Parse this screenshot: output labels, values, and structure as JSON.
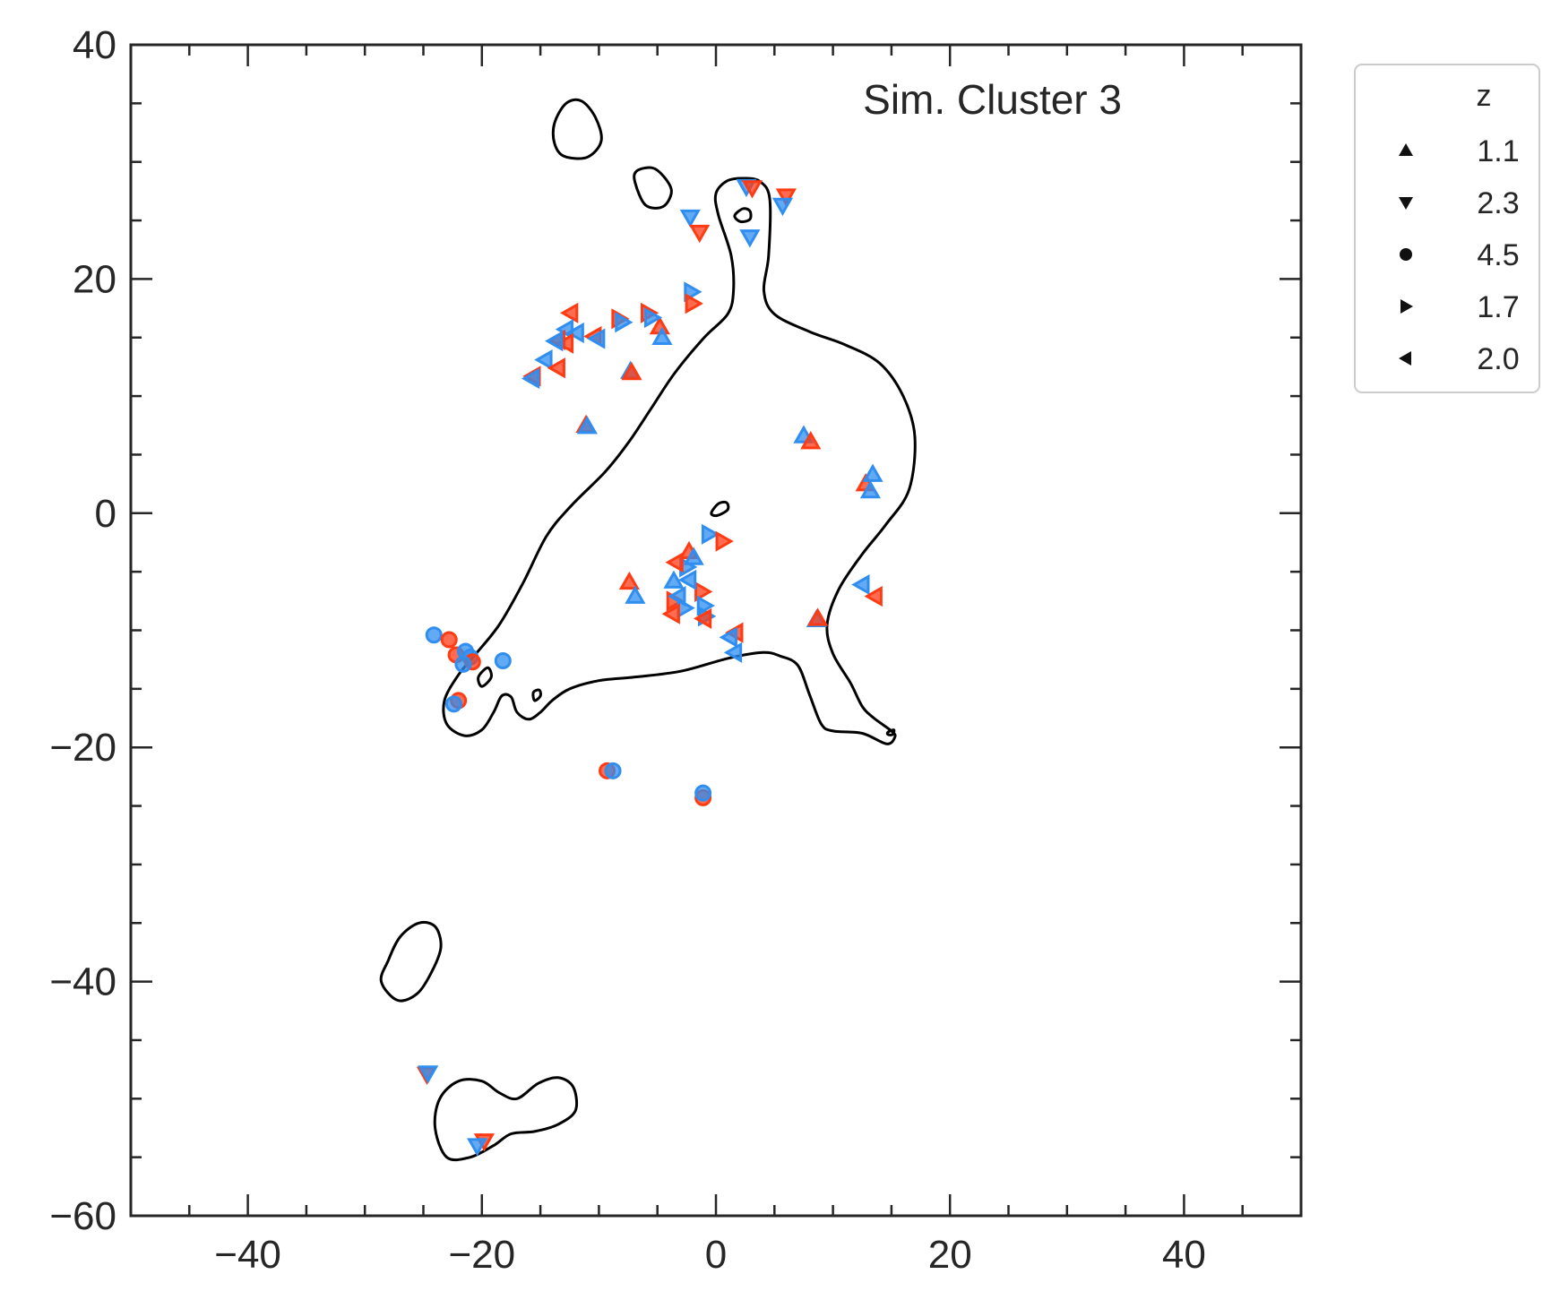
{
  "chart_data": {
    "type": "scatter",
    "title": "",
    "xlabel": "",
    "ylabel": "",
    "xlim": [
      -50,
      50
    ],
    "ylim": [
      -60,
      40
    ],
    "xticks": [
      -40,
      -20,
      0,
      20,
      40
    ],
    "yticks": [
      40,
      20,
      0,
      -20,
      -40,
      -60
    ],
    "annotation": "Sim. Cluster 3",
    "legend": {
      "title": "z",
      "placement": "outside-top-right",
      "entries": [
        {
          "label": "1.1",
          "marker": "triangle-up"
        },
        {
          "label": "2.3",
          "marker": "triangle-down"
        },
        {
          "label": "4.5",
          "marker": "circle"
        },
        {
          "label": "1.7",
          "marker": "triangle-right"
        },
        {
          "label": "2.0",
          "marker": "triangle-left"
        }
      ]
    },
    "colors": {
      "set_a": "#ff3b14",
      "set_b": "#2f8ef0",
      "contour": "#000000",
      "axes": "#262626"
    },
    "points": [
      {
        "x": -7.3,
        "y": 12.1,
        "m": "up",
        "c": "b"
      },
      {
        "x": -7.2,
        "y": 12.0,
        "m": "up",
        "c": "a"
      },
      {
        "x": -11.1,
        "y": 7.5,
        "m": "up",
        "c": "a"
      },
      {
        "x": -11.0,
        "y": 7.4,
        "m": "up",
        "c": "b"
      },
      {
        "x": -4.8,
        "y": 15.9,
        "m": "up",
        "c": "a"
      },
      {
        "x": -4.6,
        "y": 15.0,
        "m": "up",
        "c": "b"
      },
      {
        "x": 7.5,
        "y": 6.6,
        "m": "up",
        "c": "b"
      },
      {
        "x": 8.1,
        "y": 6.1,
        "m": "up",
        "c": "a"
      },
      {
        "x": 12.8,
        "y": 2.5,
        "m": "up",
        "c": "a"
      },
      {
        "x": 13.2,
        "y": 1.9,
        "m": "up",
        "c": "b"
      },
      {
        "x": 13.4,
        "y": 3.3,
        "m": "up",
        "c": "b"
      },
      {
        "x": 8.6,
        "y": -9.1,
        "m": "up",
        "c": "b"
      },
      {
        "x": 8.7,
        "y": -9.0,
        "m": "up",
        "c": "a"
      },
      {
        "x": -7.4,
        "y": -5.9,
        "m": "up",
        "c": "a"
      },
      {
        "x": -6.9,
        "y": -7.1,
        "m": "up",
        "c": "b"
      },
      {
        "x": -2.3,
        "y": -3.3,
        "m": "up",
        "c": "a"
      },
      {
        "x": -1.9,
        "y": -3.8,
        "m": "up",
        "c": "b"
      },
      {
        "x": -3.6,
        "y": -5.8,
        "m": "up",
        "c": "b"
      },
      {
        "x": -2.2,
        "y": 25.3,
        "m": "down",
        "c": "b"
      },
      {
        "x": -1.4,
        "y": 24.0,
        "m": "down",
        "c": "a"
      },
      {
        "x": 2.6,
        "y": 27.9,
        "m": "down",
        "c": "b"
      },
      {
        "x": 3.1,
        "y": 27.8,
        "m": "down",
        "c": "a"
      },
      {
        "x": 2.9,
        "y": 23.6,
        "m": "down",
        "c": "b"
      },
      {
        "x": 6.0,
        "y": 27.1,
        "m": "down",
        "c": "a"
      },
      {
        "x": 5.7,
        "y": 26.3,
        "m": "down",
        "c": "b"
      },
      {
        "x": -24.7,
        "y": -47.9,
        "m": "down",
        "c": "a"
      },
      {
        "x": -24.6,
        "y": -47.8,
        "m": "down",
        "c": "b"
      },
      {
        "x": -19.8,
        "y": -53.6,
        "m": "down",
        "c": "a"
      },
      {
        "x": -20.4,
        "y": -54.0,
        "m": "down",
        "c": "b"
      },
      {
        "x": -24.1,
        "y": -10.4,
        "m": "circle",
        "c": "b"
      },
      {
        "x": -22.8,
        "y": -10.8,
        "m": "circle",
        "c": "a"
      },
      {
        "x": -22.2,
        "y": -12.1,
        "m": "circle",
        "c": "a"
      },
      {
        "x": -21.4,
        "y": -11.8,
        "m": "circle",
        "c": "b"
      },
      {
        "x": -21.0,
        "y": -12.3,
        "m": "circle",
        "c": "b"
      },
      {
        "x": -20.8,
        "y": -12.7,
        "m": "circle",
        "c": "a"
      },
      {
        "x": -21.6,
        "y": -12.9,
        "m": "circle",
        "c": "b"
      },
      {
        "x": -18.2,
        "y": -12.6,
        "m": "circle",
        "c": "b"
      },
      {
        "x": -22.0,
        "y": -16.0,
        "m": "circle",
        "c": "a"
      },
      {
        "x": -22.4,
        "y": -16.3,
        "m": "circle",
        "c": "b"
      },
      {
        "x": -9.3,
        "y": -22.0,
        "m": "circle",
        "c": "a"
      },
      {
        "x": -8.8,
        "y": -22.0,
        "m": "circle",
        "c": "b"
      },
      {
        "x": -1.1,
        "y": -24.3,
        "m": "circle",
        "c": "a"
      },
      {
        "x": -1.1,
        "y": -23.9,
        "m": "circle",
        "c": "b"
      },
      {
        "x": -2.1,
        "y": 18.9,
        "m": "right",
        "c": "b"
      },
      {
        "x": -2.0,
        "y": 17.9,
        "m": "right",
        "c": "a"
      },
      {
        "x": -8.3,
        "y": 16.6,
        "m": "right",
        "c": "a"
      },
      {
        "x": -8.0,
        "y": 16.3,
        "m": "right",
        "c": "b"
      },
      {
        "x": -5.8,
        "y": 17.1,
        "m": "right",
        "c": "a"
      },
      {
        "x": -5.5,
        "y": 16.7,
        "m": "right",
        "c": "b"
      },
      {
        "x": -0.6,
        "y": -1.8,
        "m": "right",
        "c": "b"
      },
      {
        "x": 0.6,
        "y": -2.4,
        "m": "right",
        "c": "a"
      },
      {
        "x": -2.5,
        "y": -4.6,
        "m": "right",
        "c": "b"
      },
      {
        "x": -1.2,
        "y": -6.7,
        "m": "right",
        "c": "a"
      },
      {
        "x": -1.0,
        "y": -7.9,
        "m": "right",
        "c": "b"
      },
      {
        "x": -3.6,
        "y": -7.5,
        "m": "right",
        "c": "a"
      },
      {
        "x": -2.7,
        "y": -8.1,
        "m": "right",
        "c": "b"
      },
      {
        "x": -0.9,
        "y": -8.8,
        "m": "right",
        "c": "b"
      },
      {
        "x": -12.4,
        "y": 17.1,
        "m": "left",
        "c": "a"
      },
      {
        "x": -12.8,
        "y": 15.7,
        "m": "left",
        "c": "b"
      },
      {
        "x": -11.9,
        "y": 15.4,
        "m": "left",
        "c": "b"
      },
      {
        "x": -13.5,
        "y": 14.8,
        "m": "left",
        "c": "a"
      },
      {
        "x": -12.8,
        "y": 14.5,
        "m": "left",
        "c": "a"
      },
      {
        "x": -13.7,
        "y": 14.7,
        "m": "left",
        "c": "b"
      },
      {
        "x": -10.4,
        "y": 15.1,
        "m": "left",
        "c": "a"
      },
      {
        "x": -10.1,
        "y": 14.9,
        "m": "left",
        "c": "b"
      },
      {
        "x": -14.6,
        "y": 13.1,
        "m": "left",
        "c": "b"
      },
      {
        "x": -13.5,
        "y": 12.4,
        "m": "left",
        "c": "a"
      },
      {
        "x": -15.6,
        "y": 11.7,
        "m": "left",
        "c": "a"
      },
      {
        "x": -15.7,
        "y": 11.5,
        "m": "left",
        "c": "b"
      },
      {
        "x": -3.4,
        "y": -4.2,
        "m": "left",
        "c": "a"
      },
      {
        "x": -2.3,
        "y": -5.7,
        "m": "left",
        "c": "b"
      },
      {
        "x": -3.2,
        "y": -7.1,
        "m": "left",
        "c": "b"
      },
      {
        "x": -3.7,
        "y": -8.6,
        "m": "left",
        "c": "a"
      },
      {
        "x": -1.0,
        "y": -9.0,
        "m": "left",
        "c": "a"
      },
      {
        "x": 1.7,
        "y": -10.2,
        "m": "left",
        "c": "a"
      },
      {
        "x": 1.2,
        "y": -10.6,
        "m": "left",
        "c": "b"
      },
      {
        "x": 1.6,
        "y": -11.9,
        "m": "left",
        "c": "b"
      },
      {
        "x": 12.5,
        "y": -6.1,
        "m": "left",
        "c": "b"
      },
      {
        "x": 13.6,
        "y": -7.1,
        "m": "left",
        "c": "a"
      }
    ],
    "contours": [
      {
        "closed": true,
        "points": [
          [
            -21.5,
            -19.0
          ],
          [
            -23.0,
            -18.0
          ],
          [
            -23.2,
            -16.0
          ],
          [
            -22.0,
            -13.8
          ],
          [
            -20.5,
            -12.0
          ],
          [
            -18.5,
            -9.5
          ],
          [
            -16.5,
            -6.0
          ],
          [
            -14.5,
            -2.0
          ],
          [
            -12.5,
            0.5
          ],
          [
            -9.5,
            3.5
          ],
          [
            -7.5,
            6.0
          ],
          [
            -5.5,
            9.0
          ],
          [
            -3.5,
            12.0
          ],
          [
            -1.0,
            15.0
          ],
          [
            1.0,
            17.0
          ],
          [
            1.5,
            19.0
          ],
          [
            1.3,
            22.0
          ],
          [
            0.2,
            25.5
          ],
          [
            0.0,
            27.3
          ],
          [
            1.0,
            28.4
          ],
          [
            2.5,
            28.6
          ],
          [
            3.8,
            28.3
          ],
          [
            4.6,
            26.8
          ],
          [
            4.5,
            22.0
          ],
          [
            4.1,
            19.0
          ],
          [
            5.0,
            17.0
          ],
          [
            8.0,
            15.5
          ],
          [
            11.0,
            14.4
          ],
          [
            14.0,
            12.8
          ],
          [
            16.0,
            10.0
          ],
          [
            17.0,
            6.5
          ],
          [
            16.5,
            2.0
          ],
          [
            14.5,
            -1.0
          ],
          [
            12.5,
            -3.5
          ],
          [
            10.5,
            -6.5
          ],
          [
            9.5,
            -9.5
          ],
          [
            10.0,
            -12.0
          ],
          [
            11.5,
            -14.5
          ],
          [
            12.5,
            -16.5
          ],
          [
            13.5,
            -17.5
          ],
          [
            15.0,
            -18.6
          ],
          [
            15.3,
            -19.1
          ],
          [
            14.6,
            -19.7
          ],
          [
            12.5,
            -18.8
          ],
          [
            10.0,
            -18.6
          ],
          [
            9.0,
            -18.0
          ],
          [
            8.0,
            -15.5
          ],
          [
            7.0,
            -13.0
          ],
          [
            5.5,
            -12.2
          ],
          [
            4.0,
            -11.9
          ],
          [
            1.0,
            -12.4
          ],
          [
            -3.0,
            -13.5
          ],
          [
            -7.0,
            -14.0
          ],
          [
            -10.0,
            -14.3
          ],
          [
            -12.5,
            -15.0
          ],
          [
            -14.0,
            -16.0
          ],
          [
            -15.0,
            -17.0
          ],
          [
            -16.0,
            -17.6
          ],
          [
            -17.0,
            -17.0
          ],
          [
            -17.5,
            -15.7
          ],
          [
            -18.3,
            -15.6
          ],
          [
            -19.0,
            -17.0
          ],
          [
            -20.0,
            -18.5
          ]
        ]
      },
      {
        "closed": true,
        "points": [
          [
            -13.0,
            30.5
          ],
          [
            -11.0,
            30.4
          ],
          [
            -9.8,
            31.8
          ],
          [
            -10.3,
            33.8
          ],
          [
            -11.5,
            35.2
          ],
          [
            -12.8,
            35.0
          ],
          [
            -13.8,
            33.3
          ],
          [
            -13.8,
            31.6
          ]
        ]
      },
      {
        "closed": true,
        "points": [
          [
            -6.0,
            26.3
          ],
          [
            -4.5,
            26.2
          ],
          [
            -3.8,
            27.5
          ],
          [
            -4.5,
            28.8
          ],
          [
            -5.5,
            29.5
          ],
          [
            -6.8,
            29.2
          ],
          [
            -6.9,
            28.2
          ]
        ]
      },
      {
        "closed": true,
        "points": [
          [
            1.6,
            25.4
          ],
          [
            2.1,
            24.9
          ],
          [
            2.9,
            25.1
          ],
          [
            2.9,
            25.8
          ],
          [
            2.3,
            26.0
          ]
        ]
      },
      {
        "closed": true,
        "points": [
          [
            -0.4,
            0.0
          ],
          [
            0.1,
            -0.2
          ],
          [
            1.0,
            0.3
          ],
          [
            0.9,
            0.9
          ],
          [
            0.2,
            0.8
          ]
        ]
      },
      {
        "closed": true,
        "points": [
          [
            -20.0,
            -14.8
          ],
          [
            -19.2,
            -14.0
          ],
          [
            -19.5,
            -13.2
          ],
          [
            -20.3,
            -14.0
          ]
        ]
      },
      {
        "closed": true,
        "points": [
          [
            -15.5,
            -16.0
          ],
          [
            -15.0,
            -15.6
          ],
          [
            -15.1,
            -15.1
          ],
          [
            -15.6,
            -15.3
          ]
        ]
      },
      {
        "closed": true,
        "points": [
          [
            14.7,
            -18.7
          ],
          [
            15.2,
            -18.5
          ],
          [
            15.1,
            -18.9
          ],
          [
            14.7,
            -18.9
          ]
        ]
      },
      {
        "closed": true,
        "points": [
          [
            -27.2,
            -41.6
          ],
          [
            -25.5,
            -41.0
          ],
          [
            -24.2,
            -39.0
          ],
          [
            -23.5,
            -37.0
          ],
          [
            -24.0,
            -35.3
          ],
          [
            -25.4,
            -35.0
          ],
          [
            -27.0,
            -36.2
          ],
          [
            -28.0,
            -38.2
          ],
          [
            -28.6,
            -40.0
          ]
        ]
      },
      {
        "closed": true,
        "points": [
          [
            -23.0,
            -55.0
          ],
          [
            -21.0,
            -55.0
          ],
          [
            -19.0,
            -54.0
          ],
          [
            -17.5,
            -53.0
          ],
          [
            -15.5,
            -52.8
          ],
          [
            -13.5,
            -52.2
          ],
          [
            -12.0,
            -51.0
          ],
          [
            -12.2,
            -49.0
          ],
          [
            -13.5,
            -48.2
          ],
          [
            -15.2,
            -48.7
          ],
          [
            -17.0,
            -50.0
          ],
          [
            -18.5,
            -49.5
          ],
          [
            -20.0,
            -48.5
          ],
          [
            -22.0,
            -48.5
          ],
          [
            -23.6,
            -50.0
          ],
          [
            -24.0,
            -52.5
          ]
        ]
      }
    ]
  }
}
